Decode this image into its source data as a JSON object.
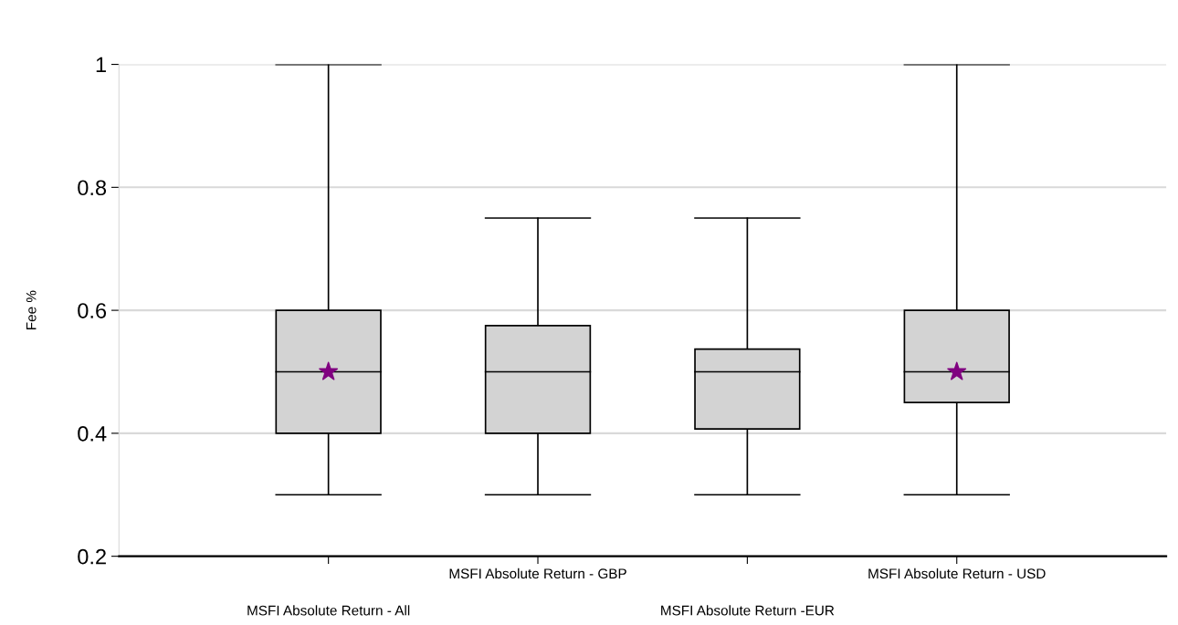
{
  "chart_data": {
    "type": "box",
    "ylabel": "Fee %",
    "categories": [
      "MSFI Absolute Return - All",
      "MSFI Absolute Return - GBP",
      "MSFI Absolute Return -EUR",
      "MSFI Absolute Return - USD"
    ],
    "boxes": [
      {
        "low": 0.3,
        "q1": 0.4,
        "median": 0.5,
        "q3": 0.6,
        "high": 1.0
      },
      {
        "low": 0.3,
        "q1": 0.4,
        "median": 0.5,
        "q3": 0.575,
        "high": 0.75
      },
      {
        "low": 0.3,
        "q1": 0.407,
        "median": 0.5,
        "q3": 0.537,
        "high": 0.75
      },
      {
        "low": 0.3,
        "q1": 0.45,
        "median": 0.5,
        "q3": 0.6,
        "high": 1.0
      }
    ],
    "series": [
      {
        "type": "scatter",
        "color": "#800080",
        "marker": "star",
        "values": [
          0.5,
          null,
          null,
          0.5
        ]
      }
    ],
    "ylim": [
      0.2,
      1
    ],
    "yticks": [
      0.2,
      0.4,
      0.6,
      0.8,
      1
    ],
    "grid": "y"
  }
}
